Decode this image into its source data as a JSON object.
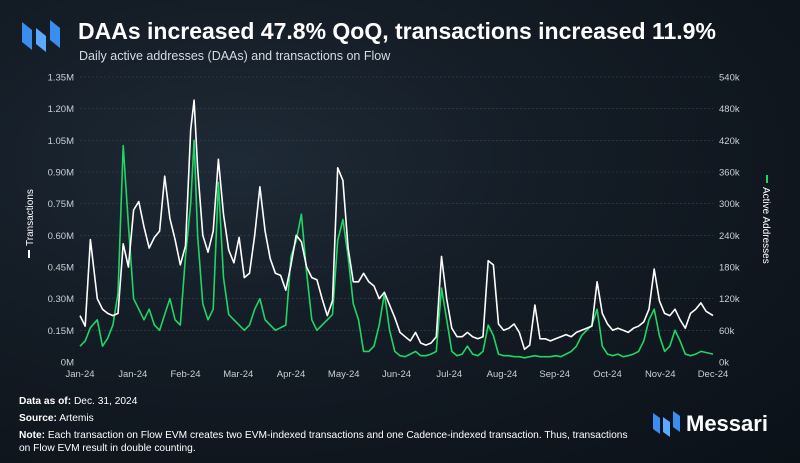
{
  "header": {
    "title": "DAAs increased 47.8% QoQ, transactions increased 11.9%",
    "subtitle": "Daily active addresses (DAAs) and transactions on Flow"
  },
  "colors": {
    "transactions": "#ffffff",
    "active_addresses": "#1fd665",
    "brand_blue": "#3a8ef0",
    "grid": "#3b4652",
    "tick_text": "#c9cfd6"
  },
  "chart_data": {
    "type": "line",
    "title": "Daily active addresses (DAAs) and transactions on Flow",
    "xlabel": "",
    "x_ticks": [
      "Jan-24",
      "Jan-24",
      "Feb-24",
      "Mar-24",
      "Apr-24",
      "May-24",
      "Jun-24",
      "Jul-24",
      "Aug-24",
      "Sep-24",
      "Oct-24",
      "Nov-24",
      "Dec-24"
    ],
    "left_axis": {
      "label": "Transactions",
      "ylim": [
        0,
        1350000
      ],
      "ticks": [
        "0M",
        "0.15M",
        "0.30M",
        "0.45M",
        "0.60M",
        "0.75M",
        "0.90M",
        "1.05M",
        "1.20M",
        "1.35M"
      ]
    },
    "right_axis": {
      "label": "Active Addresses",
      "ylim": [
        0,
        540000
      ],
      "ticks": [
        "0k",
        "60k",
        "120k",
        "180k",
        "240k",
        "300k",
        "360k",
        "420k",
        "480k",
        "540k"
      ]
    },
    "x_range": [
      0,
      366
    ],
    "series": [
      {
        "name": "Transactions",
        "axis": "left",
        "color": "#ffffff",
        "points": [
          [
            0,
            220000
          ],
          [
            3,
            170000
          ],
          [
            6,
            580000
          ],
          [
            10,
            300000
          ],
          [
            13,
            250000
          ],
          [
            16,
            230000
          ],
          [
            19,
            220000
          ],
          [
            22,
            230000
          ],
          [
            25,
            560000
          ],
          [
            28,
            450000
          ],
          [
            31,
            720000
          ],
          [
            34,
            760000
          ],
          [
            37,
            640000
          ],
          [
            40,
            540000
          ],
          [
            43,
            590000
          ],
          [
            46,
            620000
          ],
          [
            49,
            880000
          ],
          [
            52,
            680000
          ],
          [
            55,
            580000
          ],
          [
            58,
            460000
          ],
          [
            61,
            550000
          ],
          [
            64,
            1100000
          ],
          [
            66,
            1240000
          ],
          [
            68,
            920000
          ],
          [
            71,
            600000
          ],
          [
            74,
            520000
          ],
          [
            77,
            620000
          ],
          [
            80,
            960000
          ],
          [
            83,
            700000
          ],
          [
            86,
            530000
          ],
          [
            89,
            470000
          ],
          [
            92,
            590000
          ],
          [
            95,
            400000
          ],
          [
            98,
            420000
          ],
          [
            101,
            600000
          ],
          [
            104,
            830000
          ],
          [
            107,
            620000
          ],
          [
            110,
            490000
          ],
          [
            113,
            420000
          ],
          [
            116,
            410000
          ],
          [
            119,
            340000
          ],
          [
            122,
            460000
          ],
          [
            125,
            600000
          ],
          [
            128,
            570000
          ],
          [
            131,
            450000
          ],
          [
            134,
            400000
          ],
          [
            137,
            390000
          ],
          [
            140,
            300000
          ],
          [
            143,
            220000
          ],
          [
            146,
            290000
          ],
          [
            149,
            920000
          ],
          [
            152,
            860000
          ],
          [
            155,
            540000
          ],
          [
            158,
            380000
          ],
          [
            161,
            380000
          ],
          [
            164,
            420000
          ],
          [
            167,
            380000
          ],
          [
            170,
            360000
          ],
          [
            173,
            300000
          ],
          [
            176,
            330000
          ],
          [
            179,
            270000
          ],
          [
            182,
            210000
          ],
          [
            185,
            140000
          ],
          [
            188,
            120000
          ],
          [
            191,
            100000
          ],
          [
            194,
            140000
          ],
          [
            197,
            90000
          ],
          [
            200,
            80000
          ],
          [
            203,
            90000
          ],
          [
            206,
            120000
          ],
          [
            209,
            500000
          ],
          [
            212,
            300000
          ],
          [
            215,
            160000
          ],
          [
            218,
            120000
          ],
          [
            221,
            120000
          ],
          [
            224,
            140000
          ],
          [
            227,
            120000
          ],
          [
            230,
            110000
          ],
          [
            233,
            120000
          ],
          [
            236,
            480000
          ],
          [
            239,
            460000
          ],
          [
            242,
            180000
          ],
          [
            245,
            150000
          ],
          [
            248,
            160000
          ],
          [
            251,
            180000
          ],
          [
            254,
            140000
          ],
          [
            257,
            60000
          ],
          [
            260,
            80000
          ],
          [
            263,
            270000
          ],
          [
            266,
            110000
          ],
          [
            269,
            110000
          ],
          [
            272,
            100000
          ],
          [
            275,
            110000
          ],
          [
            278,
            120000
          ],
          [
            281,
            130000
          ],
          [
            284,
            120000
          ],
          [
            287,
            140000
          ],
          [
            290,
            150000
          ],
          [
            293,
            160000
          ],
          [
            296,
            170000
          ],
          [
            299,
            380000
          ],
          [
            302,
            230000
          ],
          [
            305,
            180000
          ],
          [
            308,
            150000
          ],
          [
            311,
            160000
          ],
          [
            314,
            150000
          ],
          [
            317,
            140000
          ],
          [
            320,
            160000
          ],
          [
            323,
            170000
          ],
          [
            326,
            190000
          ],
          [
            329,
            250000
          ],
          [
            332,
            440000
          ],
          [
            335,
            290000
          ],
          [
            338,
            230000
          ],
          [
            341,
            220000
          ],
          [
            344,
            250000
          ],
          [
            347,
            200000
          ],
          [
            350,
            160000
          ],
          [
            353,
            230000
          ],
          [
            356,
            250000
          ],
          [
            359,
            280000
          ],
          [
            362,
            240000
          ],
          [
            366,
            220000
          ]
        ]
      },
      {
        "name": "Active Addresses",
        "axis": "right",
        "color": "#1fd665",
        "points": [
          [
            0,
            30000
          ],
          [
            3,
            40000
          ],
          [
            6,
            65000
          ],
          [
            10,
            80000
          ],
          [
            13,
            30000
          ],
          [
            16,
            45000
          ],
          [
            19,
            70000
          ],
          [
            22,
            130000
          ],
          [
            25,
            410000
          ],
          [
            28,
            260000
          ],
          [
            31,
            120000
          ],
          [
            34,
            100000
          ],
          [
            37,
            80000
          ],
          [
            40,
            100000
          ],
          [
            43,
            70000
          ],
          [
            46,
            60000
          ],
          [
            49,
            90000
          ],
          [
            52,
            120000
          ],
          [
            55,
            80000
          ],
          [
            58,
            70000
          ],
          [
            61,
            200000
          ],
          [
            64,
            300000
          ],
          [
            66,
            420000
          ],
          [
            68,
            240000
          ],
          [
            71,
            110000
          ],
          [
            74,
            80000
          ],
          [
            77,
            100000
          ],
          [
            80,
            340000
          ],
          [
            83,
            160000
          ],
          [
            86,
            90000
          ],
          [
            89,
            80000
          ],
          [
            92,
            70000
          ],
          [
            95,
            60000
          ],
          [
            98,
            70000
          ],
          [
            101,
            100000
          ],
          [
            104,
            120000
          ],
          [
            107,
            80000
          ],
          [
            110,
            70000
          ],
          [
            113,
            60000
          ],
          [
            116,
            65000
          ],
          [
            119,
            70000
          ],
          [
            122,
            200000
          ],
          [
            125,
            230000
          ],
          [
            128,
            280000
          ],
          [
            131,
            170000
          ],
          [
            134,
            80000
          ],
          [
            137,
            60000
          ],
          [
            140,
            70000
          ],
          [
            143,
            80000
          ],
          [
            146,
            90000
          ],
          [
            149,
            230000
          ],
          [
            152,
            270000
          ],
          [
            155,
            200000
          ],
          [
            158,
            110000
          ],
          [
            161,
            80000
          ],
          [
            164,
            20000
          ],
          [
            167,
            20000
          ],
          [
            170,
            30000
          ],
          [
            173,
            70000
          ],
          [
            176,
            130000
          ],
          [
            179,
            60000
          ],
          [
            182,
            20000
          ],
          [
            185,
            12000
          ],
          [
            188,
            10000
          ],
          [
            191,
            15000
          ],
          [
            194,
            20000
          ],
          [
            197,
            12000
          ],
          [
            200,
            12000
          ],
          [
            203,
            15000
          ],
          [
            206,
            20000
          ],
          [
            209,
            140000
          ],
          [
            212,
            80000
          ],
          [
            215,
            20000
          ],
          [
            218,
            12000
          ],
          [
            221,
            15000
          ],
          [
            224,
            30000
          ],
          [
            227,
            15000
          ],
          [
            230,
            12000
          ],
          [
            233,
            20000
          ],
          [
            236,
            70000
          ],
          [
            239,
            50000
          ],
          [
            242,
            15000
          ],
          [
            245,
            12000
          ],
          [
            248,
            12000
          ],
          [
            251,
            10000
          ],
          [
            254,
            10000
          ],
          [
            257,
            8000
          ],
          [
            260,
            10000
          ],
          [
            263,
            12000
          ],
          [
            266,
            10000
          ],
          [
            269,
            10000
          ],
          [
            272,
            10000
          ],
          [
            275,
            12000
          ],
          [
            278,
            10000
          ],
          [
            281,
            15000
          ],
          [
            284,
            20000
          ],
          [
            287,
            30000
          ],
          [
            290,
            50000
          ],
          [
            293,
            60000
          ],
          [
            296,
            70000
          ],
          [
            299,
            100000
          ],
          [
            302,
            30000
          ],
          [
            305,
            15000
          ],
          [
            308,
            12000
          ],
          [
            311,
            15000
          ],
          [
            314,
            10000
          ],
          [
            317,
            12000
          ],
          [
            320,
            15000
          ],
          [
            323,
            20000
          ],
          [
            326,
            40000
          ],
          [
            329,
            80000
          ],
          [
            332,
            100000
          ],
          [
            335,
            50000
          ],
          [
            338,
            20000
          ],
          [
            341,
            30000
          ],
          [
            344,
            60000
          ],
          [
            347,
            40000
          ],
          [
            350,
            15000
          ],
          [
            353,
            12000
          ],
          [
            356,
            15000
          ],
          [
            359,
            20000
          ],
          [
            362,
            18000
          ],
          [
            366,
            15000
          ]
        ]
      }
    ]
  },
  "footer": {
    "data_as_of_label": "Data as of:",
    "data_as_of_value": "Dec. 31, 2024",
    "source_label": "Source:",
    "source_value": "Artemis",
    "note_label": "Note:",
    "note_value": "Each transaction on Flow EVM creates two EVM-indexed transactions and one Cadence-indexed transaction. Thus, transactions on Flow EVM result in double counting."
  },
  "brand": {
    "name": "Messari"
  }
}
